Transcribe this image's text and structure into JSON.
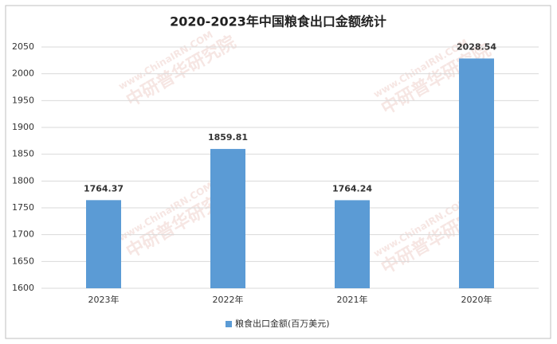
{
  "chart_data": {
    "type": "bar",
    "title": "2020-2023年中国粮食出口金额统计",
    "categories": [
      "2023年",
      "2022年",
      "2021年",
      "2020年"
    ],
    "series": [
      {
        "name": "粮食出口金额(百万美元)",
        "color": "#5b9bd5",
        "values": [
          1764.37,
          1859.81,
          1764.24,
          2028.54
        ]
      }
    ],
    "ylim": [
      1600,
      2050
    ],
    "yticks": [
      1600,
      1650,
      1700,
      1750,
      1800,
      1850,
      1900,
      1950,
      2000,
      2050
    ],
    "grid": true,
    "legend": "bottom",
    "watermark": [
      "www.ChinaIRN.COM",
      "中研普华研究院"
    ]
  }
}
